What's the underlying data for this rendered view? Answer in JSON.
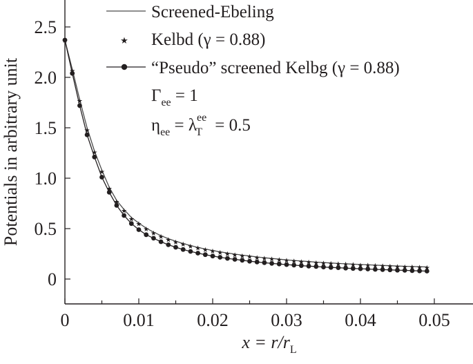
{
  "chart_data": {
    "type": "line",
    "title": "",
    "xlabel": {
      "main": "x = r/r",
      "sub": "L"
    },
    "ylabel": "Potentials in arbitrary unit",
    "xlim": [
      0,
      0.055
    ],
    "ylim": [
      -0.25,
      2.75
    ],
    "xticks": [
      0,
      0.01,
      0.02,
      0.03,
      0.04,
      0.05
    ],
    "xtick_labels": [
      "0",
      "0.01",
      "0.02",
      "0.03",
      "0.04",
      "0.05"
    ],
    "yticks": [
      0,
      0.5,
      1.0,
      1.5,
      2.0,
      2.5
    ],
    "ytick_labels": [
      "0",
      "0.5",
      "1.0",
      "1.5",
      "2.0",
      "2.5"
    ],
    "grid": false,
    "legend_position": "top-right",
    "x": [
      0,
      0.001,
      0.002,
      0.003,
      0.004,
      0.005,
      0.006,
      0.007,
      0.008,
      0.009,
      0.01,
      0.011,
      0.012,
      0.013,
      0.014,
      0.015,
      0.016,
      0.017,
      0.018,
      0.019,
      0.02,
      0.021,
      0.022,
      0.023,
      0.024,
      0.025,
      0.026,
      0.027,
      0.028,
      0.029,
      0.03,
      0.031,
      0.032,
      0.033,
      0.034,
      0.035,
      0.036,
      0.037,
      0.038,
      0.039,
      0.04,
      0.041,
      0.042,
      0.043,
      0.044,
      0.045,
      0.046,
      0.047,
      0.048,
      0.049
    ],
    "series": [
      {
        "name": "Screened-Ebeling",
        "style": "line",
        "values": [
          2.37,
          2.08,
          1.78,
          1.5,
          1.27,
          1.08,
          0.91,
          0.78,
          0.69,
          0.61,
          0.555,
          0.505,
          0.465,
          0.43,
          0.4,
          0.375,
          0.352,
          0.332,
          0.314,
          0.298,
          0.283,
          0.27,
          0.258,
          0.247,
          0.237,
          0.228,
          0.219,
          0.211,
          0.204,
          0.197,
          0.19,
          0.184,
          0.179,
          0.173,
          0.168,
          0.164,
          0.159,
          0.155,
          0.151,
          0.148,
          0.144,
          0.141,
          0.138,
          0.135,
          0.132,
          0.129,
          0.127,
          0.124,
          0.122,
          0.12
        ]
      },
      {
        "name": "Kelbd (γ = 0.88)",
        "style": "star",
        "values": [
          2.37,
          2.07,
          1.77,
          1.48,
          1.26,
          1.07,
          0.9,
          0.77,
          0.68,
          0.6,
          0.55,
          0.5,
          0.46,
          0.425,
          0.395,
          0.37,
          0.348,
          0.328,
          0.31,
          0.294,
          0.28,
          0.267,
          0.255,
          0.244,
          0.234,
          0.225,
          0.216,
          0.208,
          0.201,
          0.194,
          0.188,
          0.182,
          0.176,
          0.171,
          0.166,
          0.162,
          0.157,
          0.153,
          0.149,
          0.146,
          0.142,
          0.139,
          0.136,
          0.133,
          0.13,
          0.127,
          0.125,
          0.122,
          0.12,
          0.118
        ]
      },
      {
        "name": "“Pseudo” screened Kelbg (γ = 0.88)",
        "style": "line-dot",
        "values": [
          2.37,
          2.04,
          1.72,
          1.43,
          1.21,
          1.01,
          0.86,
          0.73,
          0.63,
          0.55,
          0.49,
          0.44,
          0.405,
          0.37,
          0.34,
          0.315,
          0.293,
          0.274,
          0.257,
          0.242,
          0.228,
          0.216,
          0.205,
          0.195,
          0.186,
          0.177,
          0.169,
          0.162,
          0.155,
          0.149,
          0.143,
          0.138,
          0.133,
          0.128,
          0.124,
          0.119,
          0.115,
          0.112,
          0.108,
          0.105,
          0.102,
          0.099,
          0.096,
          0.093,
          0.091,
          0.088,
          0.086,
          0.083,
          0.081,
          0.079
        ]
      }
    ],
    "annotations": [
      {
        "main": "Γ",
        "sub": "ee",
        "rest": " = 1"
      },
      {
        "main": "η",
        "sub": "ee",
        "mid": " = λ",
        "sub2": "T",
        "sup2": "ee",
        "rest": " = 0.5"
      }
    ]
  }
}
